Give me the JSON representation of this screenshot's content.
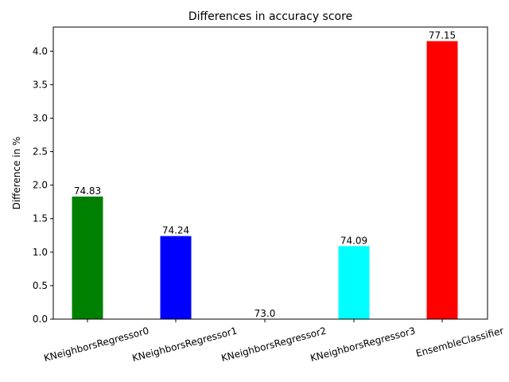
{
  "chart_data": {
    "type": "bar",
    "title": "Differences in accuracy score",
    "xlabel": "",
    "ylabel": "Difference in %",
    "categories": [
      "KNeighborsRegressor0",
      "KNeighborsRegressor1",
      "KNeighborsRegressor2",
      "KNeighborsRegressor3",
      "EnsembleClassifier"
    ],
    "values": [
      1.83,
      1.24,
      0.0,
      1.09,
      4.15
    ],
    "bar_labels": [
      "74.83",
      "74.24",
      "73.0",
      "74.09",
      "77.15"
    ],
    "colors": [
      "#008000",
      "#0000ff",
      "#000000",
      "#00ffff",
      "#ff0000"
    ],
    "ylim": [
      0,
      4.36
    ],
    "yticks": [
      0.0,
      0.5,
      1.0,
      1.5,
      2.0,
      2.5,
      3.0,
      3.5,
      4.0
    ],
    "ytick_labels": [
      "0.0",
      "0.5",
      "1.0",
      "1.5",
      "2.0",
      "2.5",
      "3.0",
      "3.5",
      "4.0"
    ],
    "grid": false,
    "legend": "none"
  }
}
